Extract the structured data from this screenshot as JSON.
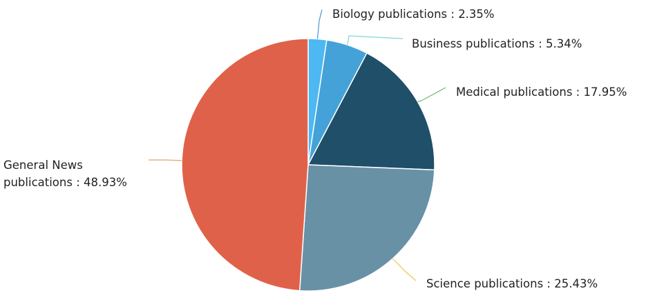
{
  "chart_data": {
    "type": "pie",
    "categories": [
      "Biology publications",
      "Business publications",
      "Medical publications",
      "Science publications",
      "General News publications"
    ],
    "values": [
      2.35,
      5.34,
      17.95,
      25.43,
      48.93
    ],
    "value_labels": [
      "2.35%",
      "5.34%",
      "17.95%",
      "25.43%",
      "48.93%"
    ],
    "label_separator": " : ",
    "colors": [
      "#4db8f2",
      "#44a2d9",
      "#1f4f69",
      "#6891a6",
      "#e0614a"
    ],
    "leader_colors": [
      "#4a90d9",
      "#7fd6d6",
      "#6cb86c",
      "#e8c94e",
      "#e0a565"
    ]
  }
}
